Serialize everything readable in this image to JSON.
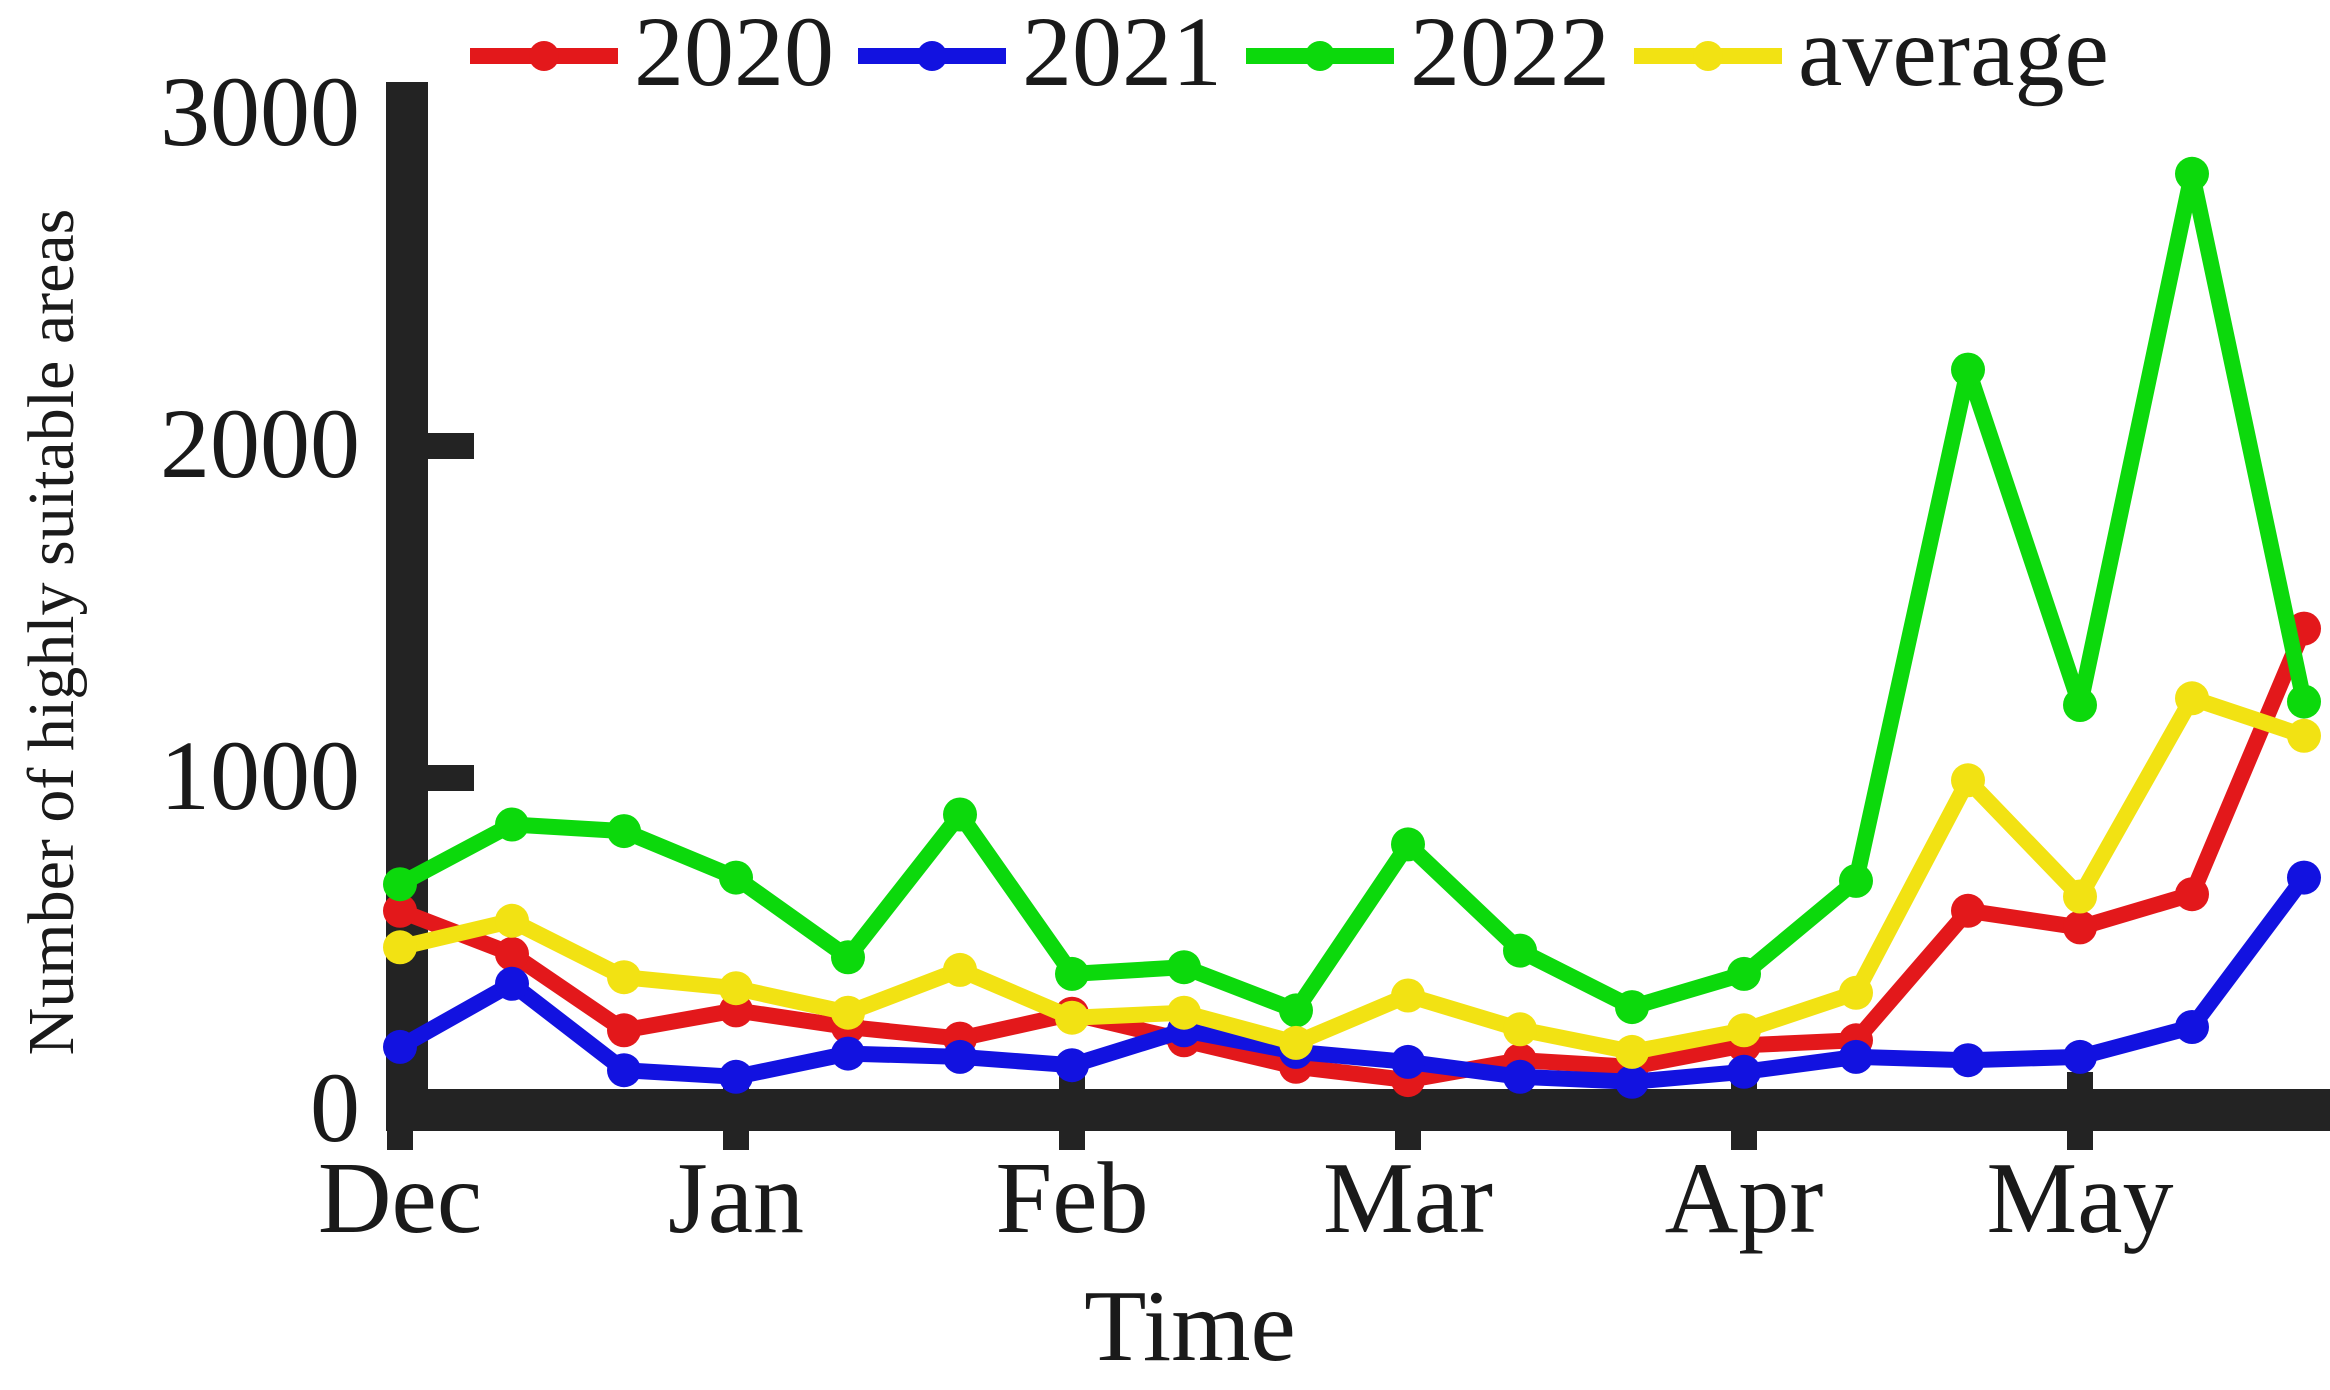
{
  "figure": {
    "background": "#ffffff",
    "text_color": "#1a1a1a",
    "axis_color": "#232323"
  },
  "chart_data": {
    "type": "line",
    "title": "",
    "xlabel": "Time",
    "ylabel": "Number of highly suitable areas",
    "ylim": [
      0,
      3000
    ],
    "yticks": [
      0,
      1000,
      2000,
      3000
    ],
    "ytick_labels": [
      "0",
      "1000",
      "2000",
      "3000"
    ],
    "x_tick_labels": [
      "Dec",
      "Jan",
      "Feb",
      "Mar",
      "Apr",
      "May"
    ],
    "points_per_month": 3,
    "n_points": 18,
    "grid": false,
    "legend_position": "top",
    "marker": "circle",
    "series": [
      {
        "name": "2020",
        "color": "#e3181b",
        "values": [
          600,
          470,
          240,
          300,
          250,
          215,
          290,
          210,
          130,
          90,
          150,
          130,
          195,
          210,
          600,
          550,
          650,
          1450
        ]
      },
      {
        "name": "2021",
        "color": "#1212e0",
        "values": [
          190,
          380,
          120,
          100,
          170,
          160,
          135,
          240,
          175,
          145,
          100,
          85,
          115,
          160,
          150,
          160,
          250,
          700
        ]
      },
      {
        "name": "2022",
        "color": "#0cd90c",
        "values": [
          680,
          860,
          840,
          700,
          460,
          890,
          410,
          430,
          300,
          800,
          480,
          310,
          410,
          690,
          2230,
          1220,
          2820,
          1230
        ]
      },
      {
        "name": "average",
        "color": "#f2e213",
        "values": [
          490,
          570,
          400,
          367,
          293,
          422,
          278,
          293,
          202,
          345,
          243,
          175,
          240,
          353,
          993,
          643,
          1240,
          1127
        ]
      }
    ]
  }
}
